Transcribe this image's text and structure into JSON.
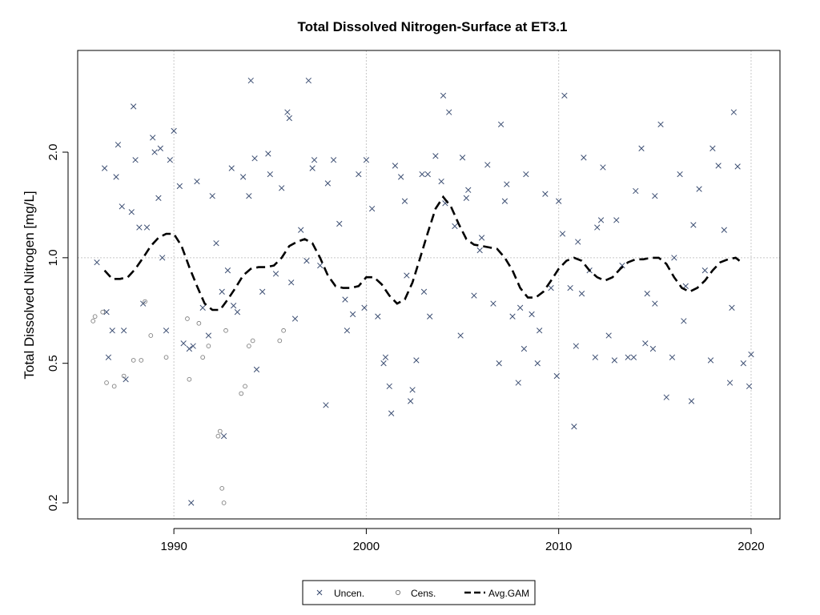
{
  "chart_data": {
    "type": "scatter",
    "title": "Total Dissolved Nitrogen-Surface at ET3.1",
    "xlabel": "",
    "ylabel": "Total Dissolved Nitrogen [mg/L]",
    "x_scale": "linear",
    "y_scale": "log",
    "xlim": [
      1985,
      2021.5
    ],
    "ylim": [
      0.18,
      3.9
    ],
    "x_ticks": [
      1990,
      2000,
      2010,
      2020
    ],
    "x_tick_labels": [
      "1990",
      "2000",
      "2010",
      "2020"
    ],
    "y_ticks": [
      0.2,
      0.5,
      1.0,
      2.0
    ],
    "y_tick_labels": [
      "0.2",
      "0.5",
      "1.0",
      "2.0"
    ],
    "grid": true,
    "reference_line_y": 1.0,
    "legend": {
      "position": "bottom-center",
      "entries": [
        {
          "label": "Uncen.",
          "marker": "x"
        },
        {
          "label": "Cens.",
          "marker": "circle"
        },
        {
          "label": "Avg.GAM",
          "marker": "dashed-line"
        }
      ]
    },
    "colors": {
      "uncen": "#3d4f73",
      "cens": "#808080",
      "gam": "#000000",
      "grid": "#c8c8c8"
    },
    "series": [
      {
        "name": "Uncen.",
        "marker": "x",
        "x": [
          1986.0,
          1986.4,
          1986.5,
          1986.6,
          1986.8,
          1987.0,
          1987.1,
          1987.3,
          1987.4,
          1987.5,
          1987.8,
          1988.0,
          1988.2,
          1988.4,
          1988.6,
          1988.9,
          1989.0,
          1989.2,
          1989.4,
          1989.6,
          1989.8,
          1990.0,
          1990.3,
          1990.5,
          1990.8,
          1991.0,
          1991.2,
          1991.5,
          1991.8,
          1992.0,
          1992.2,
          1992.5,
          1992.8,
          1993.0,
          1993.3,
          1993.6,
          1993.9,
          1994.0,
          1994.3,
          1994.6,
          1994.9,
          1995.0,
          1995.3,
          1995.6,
          1995.9,
          1996.0,
          1996.3,
          1996.6,
          1996.9,
          1997.0,
          1997.3,
          1997.6,
          1997.9,
          1998.0,
          1998.3,
          1998.6,
          1998.9,
          1999.0,
          1999.3,
          1999.6,
          1999.9,
          2000.0,
          2000.3,
          2000.6,
          2000.9,
          2001.0,
          2001.2,
          2001.5,
          2001.8,
          2002.0,
          2002.3,
          2002.6,
          2002.9,
          2003.0,
          2003.3,
          2003.6,
          2003.9,
          2004.0,
          2004.3,
          2004.6,
          2004.9,
          2005.0,
          2005.3,
          2005.6,
          2005.9,
          2006.0,
          2006.3,
          2006.6,
          2006.9,
          2007.0,
          2007.3,
          2007.6,
          2007.9,
          2008.0,
          2008.3,
          2008.6,
          2008.9,
          2009.0,
          2009.3,
          2009.6,
          2009.9,
          2010.0,
          2010.3,
          2010.6,
          2010.9,
          2011.0,
          2011.3,
          2011.6,
          2011.9,
          2012.0,
          2012.3,
          2012.6,
          2012.9,
          2013.0,
          2013.3,
          2013.6,
          2013.9,
          2014.0,
          2014.3,
          2014.6,
          2014.9,
          2015.0,
          2015.3,
          2015.6,
          2015.9,
          2016.0,
          2016.3,
          2016.6,
          2016.9,
          2017.0,
          2017.3,
          2017.6,
          2017.9,
          2018.0,
          2018.3,
          2018.6,
          2018.9,
          2019.0,
          2019.3,
          2019.6,
          2019.9,
          2020.0,
          1987.9,
          1989.3,
          1993.1,
          1994.2,
          1996.1,
          1997.2,
          2002.1,
          2003.2,
          2004.1,
          2005.2,
          2007.2,
          2010.2,
          2011.2,
          2012.2,
          2015.0,
          2019.1,
          1990.9,
          1992.6,
          2010.8,
          2001.3,
          2002.4,
          2008.2,
          2014.5,
          2016.5
        ],
        "y": [
          0.97,
          1.8,
          0.7,
          0.52,
          0.62,
          1.7,
          2.1,
          1.4,
          0.62,
          0.45,
          1.35,
          1.9,
          1.22,
          0.74,
          1.22,
          2.2,
          2.0,
          1.48,
          1.0,
          0.62,
          1.9,
          2.3,
          1.6,
          0.57,
          0.55,
          0.56,
          1.65,
          0.72,
          0.6,
          1.5,
          1.1,
          0.8,
          0.92,
          1.8,
          0.7,
          1.7,
          1.5,
          3.2,
          0.48,
          0.8,
          1.98,
          1.73,
          0.9,
          1.58,
          2.6,
          2.5,
          0.67,
          1.2,
          0.98,
          3.2,
          1.9,
          0.95,
          0.38,
          1.63,
          1.9,
          1.25,
          0.76,
          0.62,
          0.69,
          1.73,
          0.72,
          1.9,
          1.38,
          0.68,
          0.5,
          0.52,
          0.43,
          1.83,
          1.7,
          1.45,
          0.39,
          0.51,
          1.73,
          0.8,
          0.68,
          1.95,
          1.65,
          2.9,
          2.6,
          1.23,
          0.6,
          1.93,
          1.56,
          0.78,
          1.05,
          1.14,
          1.84,
          0.74,
          0.5,
          2.4,
          1.62,
          0.68,
          0.44,
          0.72,
          1.73,
          0.69,
          0.5,
          0.62,
          1.52,
          0.82,
          0.46,
          1.45,
          2.9,
          0.82,
          0.56,
          1.11,
          1.93,
          0.92,
          0.52,
          1.22,
          1.81,
          0.6,
          0.51,
          1.28,
          0.95,
          0.52,
          0.52,
          1.55,
          2.05,
          0.79,
          0.55,
          0.74,
          2.4,
          0.4,
          0.52,
          1.0,
          1.73,
          0.83,
          0.39,
          1.24,
          1.57,
          0.92,
          0.51,
          2.05,
          1.83,
          1.2,
          0.44,
          0.72,
          1.82,
          0.5,
          0.43,
          0.53,
          2.7,
          2.05,
          0.73,
          1.92,
          0.85,
          1.8,
          0.89,
          1.73,
          1.43,
          1.48,
          1.45,
          1.17,
          0.79,
          1.28,
          1.5,
          2.6,
          0.2,
          0.31,
          0.33,
          0.36,
          0.42,
          0.55,
          0.57,
          0.66
        ],
        "color": "#3d4f73"
      },
      {
        "name": "Cens.",
        "marker": "circle",
        "x": [
          1985.8,
          1985.9,
          1986.3,
          1986.5,
          1986.9,
          1987.4,
          1987.9,
          1988.3,
          1988.5,
          1988.8,
          1989.6,
          1990.7,
          1990.8,
          1991.3,
          1991.5,
          1991.8,
          1992.3,
          1992.4,
          1992.5,
          1992.6,
          1992.7,
          1993.5,
          1993.7,
          1993.9,
          1994.1,
          1995.5,
          1995.7
        ],
        "y": [
          0.66,
          0.68,
          0.7,
          0.44,
          0.43,
          0.46,
          0.51,
          0.51,
          0.75,
          0.6,
          0.52,
          0.67,
          0.45,
          0.65,
          0.52,
          0.56,
          0.31,
          0.32,
          0.22,
          0.2,
          0.62,
          0.41,
          0.43,
          0.56,
          0.58,
          0.58,
          0.62
        ],
        "color": "#808080"
      },
      {
        "name": "Avg.GAM",
        "marker": "dashed-line",
        "x": [
          1986.4,
          1986.8,
          1987.2,
          1987.6,
          1988.0,
          1988.4,
          1988.8,
          1989.2,
          1989.6,
          1990.0,
          1990.4,
          1990.8,
          1991.2,
          1991.6,
          1992.0,
          1992.4,
          1992.8,
          1993.2,
          1993.6,
          1994.0,
          1994.4,
          1994.8,
          1995.2,
          1995.6,
          1996.0,
          1996.4,
          1996.8,
          1997.2,
          1997.6,
          1998.0,
          1998.4,
          1998.8,
          1999.2,
          1999.6,
          2000.0,
          2000.4,
          2000.8,
          2001.2,
          2001.6,
          2002.0,
          2002.4,
          2002.8,
          2003.2,
          2003.6,
          2004.0,
          2004.4,
          2004.8,
          2005.2,
          2005.6,
          2006.0,
          2006.4,
          2006.8,
          2007.2,
          2007.6,
          2008.0,
          2008.4,
          2008.8,
          2009.2,
          2009.6,
          2010.0,
          2010.4,
          2010.8,
          2011.2,
          2011.6,
          2012.0,
          2012.4,
          2012.8,
          2013.2,
          2013.6,
          2014.0,
          2014.4,
          2014.8,
          2015.2,
          2015.6,
          2016.0,
          2016.4,
          2016.8,
          2017.2,
          2017.6,
          2018.0,
          2018.4,
          2018.8,
          2019.2,
          2019.4
        ],
        "y": [
          0.92,
          0.87,
          0.87,
          0.88,
          0.93,
          1.0,
          1.08,
          1.14,
          1.17,
          1.17,
          1.08,
          0.94,
          0.83,
          0.74,
          0.71,
          0.71,
          0.76,
          0.82,
          0.89,
          0.93,
          0.94,
          0.94,
          0.95,
          1.0,
          1.08,
          1.11,
          1.13,
          1.1,
          1.0,
          0.89,
          0.83,
          0.82,
          0.82,
          0.83,
          0.88,
          0.88,
          0.84,
          0.78,
          0.74,
          0.76,
          0.85,
          1.0,
          1.18,
          1.38,
          1.49,
          1.4,
          1.25,
          1.13,
          1.09,
          1.08,
          1.07,
          1.06,
          1.0,
          0.92,
          0.82,
          0.77,
          0.77,
          0.8,
          0.86,
          0.93,
          0.98,
          1.0,
          0.98,
          0.92,
          0.88,
          0.86,
          0.88,
          0.93,
          0.97,
          0.99,
          0.99,
          1.0,
          1.0,
          0.96,
          0.88,
          0.82,
          0.8,
          0.82,
          0.86,
          0.92,
          0.97,
          0.99,
          1.0,
          0.98
        ],
        "color": "#000000"
      }
    ]
  }
}
